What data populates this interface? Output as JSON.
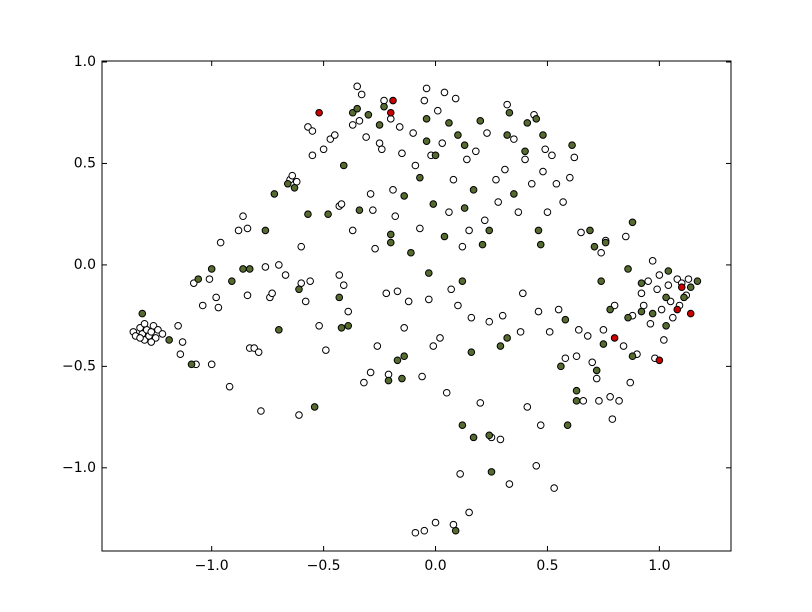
{
  "chart_data": {
    "type": "scatter",
    "xlim": [
      -1.49,
      1.32
    ],
    "ylim": [
      -1.41,
      1.005
    ],
    "xticks": [
      {
        "value": -1.0,
        "label": "−1.0"
      },
      {
        "value": -0.5,
        "label": "−0.5"
      },
      {
        "value": 0.0,
        "label": "0.0"
      },
      0.5,
      {
        "value": 1.0,
        "label": "1.0"
      }
    ],
    "yticks": [
      {
        "value": -1.0,
        "label": "−1.0"
      },
      {
        "value": -0.5,
        "label": "−0.5"
      },
      {
        "value": 0.0,
        "label": "0.0"
      },
      0.5,
      {
        "value": 1.0,
        "label": "1.0"
      }
    ],
    "series": [
      {
        "color": "#ffffff",
        "x": [
          -1.35,
          -1.34,
          -1.32,
          -1.31,
          -1.3,
          -1.29,
          -1.28,
          -1.27,
          -1.26,
          -1.25,
          -1.24,
          -1.22,
          -1.27,
          -1.32,
          -1.3,
          -1.15,
          -1.13,
          -1.14,
          -1.08,
          -1.07,
          -1.04,
          -1.0,
          -1.01,
          -0.98,
          -0.96,
          -0.97,
          -0.92,
          -0.88,
          -0.86,
          -0.84,
          -0.84,
          -0.83,
          -0.81,
          -0.79,
          -0.78,
          -0.76,
          -0.74,
          -0.73,
          -0.7,
          -0.67,
          -0.65,
          -0.64,
          -0.62,
          -0.61,
          -0.6,
          -0.6,
          -0.58,
          -0.56,
          -0.57,
          -0.55,
          -0.52,
          -0.5,
          -0.55,
          -0.49,
          -0.47,
          -0.45,
          -0.43,
          -0.42,
          -0.43,
          -0.41,
          -0.39,
          -0.37,
          -0.37,
          -0.35,
          -0.34,
          -0.33,
          -0.32,
          -0.31,
          -0.29,
          -0.29,
          -0.28,
          -0.27,
          -0.26,
          -0.25,
          -0.24,
          -0.23,
          -0.22,
          -0.21,
          -0.2,
          -0.19,
          -0.18,
          -0.17,
          -0.16,
          -0.15,
          -0.14,
          -0.12,
          -0.1,
          -0.09,
          -0.07,
          -0.06,
          -0.05,
          -0.04,
          -0.03,
          -0.02,
          -0.01,
          0.01,
          0.02,
          0.03,
          0.04,
          0.05,
          0.06,
          0.07,
          0.08,
          0.09,
          0.1,
          0.11,
          0.12,
          0.14,
          0.15,
          0.16,
          0.18,
          0.2,
          0.22,
          0.23,
          0.24,
          0.25,
          0.27,
          0.28,
          0.29,
          0.3,
          0.31,
          0.32,
          0.33,
          0.35,
          0.37,
          0.38,
          0.39,
          0.4,
          0.41,
          0.43,
          0.44,
          0.45,
          0.46,
          0.47,
          0.48,
          0.49,
          0.5,
          0.51,
          0.52,
          0.53,
          0.54,
          0.55,
          0.57,
          0.58,
          0.6,
          0.62,
          0.63,
          0.64,
          0.65,
          0.66,
          0.68,
          0.7,
          0.72,
          0.73,
          0.74,
          0.75,
          0.76,
          0.78,
          0.79,
          0.8,
          0.82,
          0.84,
          0.85,
          0.87,
          0.88,
          0.9,
          0.92,
          0.93,
          0.95,
          0.96,
          0.97,
          0.98,
          0.99,
          1.0,
          1.01,
          1.02,
          1.04,
          1.05,
          1.06,
          1.08,
          1.09,
          1.1,
          1.12,
          1.13,
          -0.09,
          -0.05,
          0.0,
          0.08,
          0.15
        ],
        "values": [
          -0.33,
          -0.35,
          -0.31,
          -0.34,
          -0.37,
          -0.32,
          -0.35,
          -0.33,
          -0.3,
          -0.36,
          -0.32,
          -0.34,
          -0.38,
          -0.36,
          -0.29,
          -0.3,
          -0.38,
          -0.44,
          -0.09,
          -0.49,
          -0.2,
          -0.49,
          -0.07,
          -0.16,
          0.11,
          -0.21,
          -0.6,
          0.17,
          0.24,
          0.18,
          -0.15,
          -0.41,
          -0.41,
          -0.43,
          -0.72,
          -0.01,
          -0.16,
          -0.14,
          0.0,
          -0.05,
          0.42,
          0.44,
          0.41,
          -0.74,
          0.09,
          -0.09,
          -0.18,
          -0.08,
          0.68,
          0.66,
          -0.3,
          0.57,
          0.54,
          -0.42,
          0.62,
          0.64,
          0.29,
          0.3,
          -0.05,
          -0.1,
          -0.23,
          0.17,
          0.69,
          0.88,
          0.71,
          0.84,
          -0.58,
          0.63,
          -0.53,
          0.35,
          0.27,
          0.08,
          -0.4,
          0.6,
          0.57,
          0.81,
          -0.14,
          -0.54,
          0.72,
          0.37,
          0.24,
          -0.13,
          0.68,
          0.55,
          -0.31,
          -0.18,
          0.65,
          0.49,
          0.18,
          -0.55,
          0.81,
          0.87,
          -0.17,
          0.54,
          -0.4,
          0.76,
          -0.36,
          0.6,
          0.85,
          -0.63,
          0.26,
          -0.12,
          0.42,
          0.82,
          -0.2,
          -1.03,
          0.09,
          0.52,
          0.17,
          -0.26,
          0.56,
          -0.68,
          0.22,
          0.65,
          -0.28,
          -0.85,
          0.42,
          0.31,
          -0.86,
          -0.25,
          0.47,
          0.79,
          -1.08,
          0.62,
          0.26,
          -0.33,
          -0.14,
          0.52,
          -0.7,
          0.4,
          0.74,
          -0.99,
          -0.23,
          -0.79,
          0.46,
          0.57,
          0.26,
          -0.33,
          0.54,
          -1.1,
          0.4,
          -0.22,
          0.31,
          -0.46,
          0.43,
          0.53,
          -0.45,
          -0.32,
          0.16,
          -0.67,
          -0.35,
          -0.48,
          -0.56,
          -0.67,
          0.06,
          -0.32,
          0.12,
          -0.65,
          -0.76,
          -0.2,
          -0.67,
          -0.4,
          0.14,
          -0.58,
          -0.25,
          -0.44,
          -0.14,
          -0.2,
          -0.08,
          -0.29,
          0.02,
          -0.46,
          -0.12,
          -0.05,
          -0.22,
          -0.37,
          -0.1,
          -0.18,
          -0.26,
          -0.07,
          -0.2,
          -0.09,
          -0.15,
          -0.07,
          -1.32,
          -1.31,
          -1.27,
          -1.28,
          -1.22
        ]
      },
      {
        "color": "#556b2f",
        "x": [
          -1.31,
          -1.19,
          -1.09,
          -1.06,
          -1.0,
          -0.91,
          -0.86,
          -0.83,
          -0.76,
          -0.72,
          -0.7,
          -0.66,
          -0.63,
          -0.61,
          -0.57,
          -0.54,
          -0.48,
          -0.43,
          -0.41,
          -0.42,
          -0.39,
          -0.37,
          -0.35,
          -0.3,
          -0.34,
          -0.23,
          -0.25,
          -0.2,
          -0.2,
          -0.17,
          -0.21,
          -0.15,
          -0.14,
          -0.14,
          -0.11,
          -0.07,
          -0.04,
          -0.04,
          -0.03,
          -0.01,
          0.0,
          0.04,
          0.06,
          0.1,
          0.13,
          0.13,
          0.12,
          0.16,
          0.17,
          0.2,
          0.12,
          0.17,
          0.09,
          0.24,
          0.21,
          0.24,
          0.25,
          0.29,
          0.33,
          0.32,
          0.32,
          0.35,
          0.4,
          0.41,
          0.45,
          0.46,
          0.47,
          0.48,
          0.56,
          0.58,
          0.59,
          0.61,
          0.63,
          0.63,
          0.69,
          0.71,
          0.72,
          0.75,
          0.76,
          0.74,
          0.78,
          0.88,
          0.86,
          0.86,
          0.92,
          0.92,
          0.97,
          1.03,
          1.03,
          1.04,
          1.11,
          1.14,
          1.17,
          0.88
        ],
        "values": [
          -0.24,
          -0.37,
          -0.49,
          -0.07,
          -0.02,
          -0.08,
          -0.02,
          -0.02,
          0.17,
          0.35,
          -0.32,
          0.4,
          0.38,
          -0.12,
          0.25,
          -0.7,
          0.25,
          -0.16,
          0.49,
          -0.31,
          -0.3,
          0.75,
          0.77,
          0.74,
          0.27,
          0.78,
          0.69,
          0.15,
          0.11,
          -0.47,
          -0.57,
          -0.56,
          -0.45,
          0.34,
          0.06,
          0.43,
          0.72,
          0.61,
          -0.04,
          0.3,
          0.54,
          0.14,
          0.7,
          0.64,
          0.59,
          0.28,
          -0.08,
          -0.43,
          0.37,
          0.71,
          -0.79,
          -0.85,
          -1.31,
          0.17,
          0.1,
          -0.84,
          -1.02,
          -0.4,
          0.75,
          0.64,
          -0.36,
          0.35,
          0.56,
          0.7,
          0.72,
          0.17,
          0.1,
          0.64,
          -0.5,
          -0.27,
          -0.79,
          0.59,
          -0.62,
          -0.67,
          0.17,
          0.09,
          -0.52,
          -0.39,
          0.11,
          -0.08,
          -0.22,
          0.21,
          -0.02,
          -0.26,
          -0.23,
          -0.09,
          -0.24,
          -0.3,
          -0.16,
          -0.03,
          -0.16,
          -0.11,
          -0.08,
          -0.45
        ]
      },
      {
        "color": "#cc0000",
        "x": [
          -0.52,
          -0.19,
          -0.2,
          0.8,
          1.0,
          1.1,
          1.08,
          1.14
        ],
        "values": [
          0.75,
          0.81,
          0.75,
          -0.36,
          -0.47,
          -0.11,
          -0.22,
          -0.24
        ]
      }
    ]
  }
}
